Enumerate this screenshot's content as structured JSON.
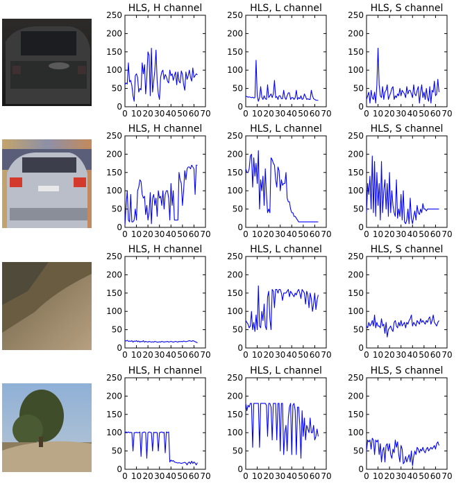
{
  "figure": {
    "rows": [
      {
        "thumbnail": "dark-car-rear-icon"
      },
      {
        "thumbnail": "silver-car-rear-icon"
      },
      {
        "thumbnail": "hillside-slope-icon"
      },
      {
        "thumbnail": "tree-landscape-icon"
      }
    ]
  },
  "chart_data": [
    {
      "type": "line",
      "title": "HLS, H channel",
      "xlim": [
        0,
        70
      ],
      "ylim": [
        0,
        250
      ],
      "xticks": [
        0,
        10,
        20,
        30,
        40,
        50,
        60,
        70
      ],
      "yticks": [
        0,
        50,
        100,
        150,
        200,
        250
      ],
      "color": "#0000ff",
      "values": [
        61,
        65,
        62,
        120,
        68,
        72,
        58,
        30,
        15,
        85,
        90,
        80,
        40,
        50,
        46,
        120,
        90,
        115,
        35,
        80,
        150,
        140,
        30,
        160,
        40,
        70,
        100,
        155,
        70,
        35,
        20,
        80,
        95,
        100,
        75,
        88,
        82,
        70,
        65,
        100,
        85,
        90,
        72,
        85,
        95,
        60,
        95,
        70,
        65,
        98,
        88,
        60,
        45,
        95,
        75,
        85,
        100,
        80,
        70,
        106,
        80,
        85,
        90,
        87
      ]
    },
    {
      "type": "line",
      "title": "HLS, L channel",
      "xlim": [
        0,
        70
      ],
      "ylim": [
        0,
        250
      ],
      "xticks": [
        0,
        10,
        20,
        30,
        40,
        50,
        60,
        70
      ],
      "yticks": [
        0,
        50,
        100,
        150,
        200,
        250
      ],
      "color": "#0000ff",
      "values": [
        28,
        28,
        26,
        27,
        26,
        25,
        26,
        24,
        25,
        127,
        30,
        15,
        25,
        55,
        26,
        20,
        30,
        22,
        20,
        60,
        25,
        30,
        35,
        25,
        35,
        72,
        25,
        28,
        20,
        30,
        30,
        22,
        22,
        45,
        25,
        20,
        30,
        38,
        38,
        20,
        25,
        25,
        20,
        25,
        45,
        20,
        25,
        22,
        30,
        20,
        22,
        35,
        28,
        20,
        22,
        20,
        20,
        45,
        30,
        22,
        20,
        18,
        18,
        17
      ]
    },
    {
      "type": "line",
      "title": "HLS, S channel",
      "xlim": [
        0,
        70
      ],
      "ylim": [
        0,
        250
      ],
      "xticks": [
        0,
        10,
        20,
        30,
        40,
        50,
        60,
        70
      ],
      "yticks": [
        0,
        50,
        100,
        150,
        200,
        250
      ],
      "color": "#0000ff",
      "values": [
        20,
        30,
        40,
        10,
        45,
        25,
        20,
        40,
        10,
        60,
        160,
        60,
        30,
        25,
        55,
        20,
        40,
        45,
        60,
        20,
        30,
        38,
        50,
        55,
        20,
        30,
        25,
        35,
        30,
        50,
        30,
        45,
        40,
        35,
        25,
        55,
        35,
        45,
        45,
        35,
        25,
        60,
        35,
        30,
        45,
        55,
        10,
        40,
        60,
        25,
        40,
        20,
        50,
        25,
        15,
        55,
        10,
        45,
        40,
        70,
        30,
        35,
        75,
        40
      ]
    },
    {
      "type": "line",
      "title": "HLS, H channel",
      "xlim": [
        0,
        70
      ],
      "ylim": [
        0,
        250
      ],
      "xticks": [
        0,
        10,
        20,
        30,
        40,
        50,
        60,
        70
      ],
      "yticks": [
        0,
        50,
        100,
        150,
        200,
        250
      ],
      "color": "#0000ff",
      "values": [
        5,
        60,
        100,
        20,
        15,
        90,
        15,
        15,
        20,
        50,
        20,
        100,
        110,
        130,
        125,
        90,
        80,
        85,
        35,
        60,
        20,
        40,
        95,
        10,
        80,
        90,
        60,
        80,
        30,
        100,
        80,
        85,
        60,
        100,
        50,
        90,
        100,
        100,
        80,
        20,
        120,
        60,
        100,
        20,
        20,
        20,
        20,
        150,
        130,
        120,
        60,
        100,
        155,
        130,
        160,
        165,
        165,
        160,
        170,
        165,
        160,
        90,
        170,
        170
      ]
    },
    {
      "type": "line",
      "title": "HLS, L channel",
      "xlim": [
        0,
        70
      ],
      "ylim": [
        0,
        250
      ],
      "xticks": [
        0,
        10,
        20,
        30,
        40,
        50,
        60,
        70
      ],
      "yticks": [
        0,
        50,
        100,
        150,
        200,
        250
      ],
      "color": "#0000ff",
      "values": [
        160,
        150,
        150,
        160,
        195,
        200,
        110,
        190,
        140,
        175,
        120,
        210,
        50,
        130,
        100,
        140,
        60,
        160,
        90,
        40,
        50,
        40,
        190,
        185,
        175,
        170,
        130,
        110,
        165,
        155,
        100,
        130,
        115,
        120,
        120,
        150,
        80,
        70,
        70,
        50,
        40,
        40,
        30,
        30,
        25,
        20,
        15,
        15,
        15,
        15,
        15,
        15,
        15,
        15,
        15,
        15,
        15,
        15,
        15,
        15,
        15,
        15,
        15,
        15
      ]
    },
    {
      "type": "line",
      "title": "HLS, S channel",
      "xlim": [
        0,
        70
      ],
      "ylim": [
        0,
        250
      ],
      "xticks": [
        0,
        10,
        20,
        30,
        40,
        50,
        60,
        70
      ],
      "yticks": [
        0,
        50,
        100,
        150,
        200,
        250
      ],
      "color": "#0000ff",
      "values": [
        40,
        120,
        90,
        140,
        50,
        195,
        40,
        180,
        30,
        150,
        60,
        120,
        20,
        180,
        40,
        100,
        130,
        50,
        120,
        30,
        150,
        40,
        100,
        60,
        40,
        30,
        130,
        25,
        50,
        30,
        90,
        20,
        100,
        15,
        10,
        20,
        50,
        10,
        80,
        25,
        10,
        30,
        45,
        20,
        60,
        40,
        35,
        50,
        40,
        65,
        50,
        50,
        45,
        50,
        50,
        50,
        50,
        50,
        50,
        50,
        50,
        50,
        50,
        50
      ]
    },
    {
      "type": "line",
      "title": "HLS, H channel",
      "xlim": [
        0,
        70
      ],
      "ylim": [
        0,
        250
      ],
      "xticks": [
        0,
        10,
        20,
        30,
        40,
        50,
        60,
        70
      ],
      "yticks": [
        0,
        50,
        100,
        150,
        200,
        250
      ],
      "color": "#0000ff",
      "values": [
        20,
        19,
        21,
        18,
        19,
        18,
        20,
        16,
        19,
        18,
        20,
        17,
        19,
        16,
        18,
        17,
        20,
        16,
        18,
        17,
        16,
        18,
        17,
        16,
        17,
        16,
        18,
        17,
        16,
        16,
        17,
        16,
        18,
        17,
        16,
        17,
        17,
        18,
        16,
        17,
        18,
        17,
        16,
        17,
        18,
        17,
        16,
        18,
        17,
        18,
        17,
        19,
        18,
        17,
        18,
        19,
        20,
        19,
        18,
        20,
        19,
        17,
        16,
        14
      ]
    },
    {
      "type": "line",
      "title": "HLS, L channel",
      "xlim": [
        0,
        70
      ],
      "ylim": [
        0,
        250
      ],
      "xticks": [
        0,
        10,
        20,
        30,
        40,
        50,
        60,
        70
      ],
      "yticks": [
        0,
        50,
        100,
        150,
        200,
        250
      ],
      "color": "#0000ff",
      "values": [
        75,
        70,
        65,
        55,
        60,
        100,
        50,
        70,
        45,
        90,
        50,
        170,
        60,
        55,
        100,
        75,
        120,
        60,
        50,
        140,
        155,
        80,
        50,
        160,
        155,
        110,
        160,
        160,
        150,
        160,
        160,
        150,
        130,
        150,
        150,
        150,
        155,
        160,
        140,
        155,
        150,
        145,
        140,
        150,
        145,
        155,
        160,
        150,
        135,
        160,
        155,
        150,
        120,
        155,
        145,
        110,
        150,
        135,
        100,
        120,
        150,
        105,
        130,
        145
      ]
    },
    {
      "type": "line",
      "title": "HLS, S channel",
      "xlim": [
        0,
        70
      ],
      "ylim": [
        0,
        250
      ],
      "xticks": [
        0,
        10,
        20,
        30,
        40,
        50,
        60,
        70
      ],
      "yticks": [
        0,
        50,
        100,
        150,
        200,
        250
      ],
      "color": "#0000ff",
      "values": [
        60,
        55,
        70,
        60,
        65,
        75,
        60,
        90,
        55,
        70,
        60,
        60,
        55,
        80,
        60,
        65,
        40,
        70,
        30,
        50,
        55,
        60,
        50,
        45,
        70,
        75,
        60,
        55,
        70,
        60,
        75,
        60,
        65,
        70,
        55,
        70,
        65,
        75,
        80,
        90,
        60,
        70,
        65,
        60,
        75,
        70,
        65,
        80,
        70,
        75,
        70,
        65,
        75,
        70,
        80,
        85,
        65,
        75,
        90,
        70,
        65,
        60,
        70,
        75
      ]
    },
    {
      "type": "line",
      "title": "HLS, H channel",
      "xlim": [
        0,
        70
      ],
      "ylim": [
        0,
        250
      ],
      "xticks": [
        0,
        10,
        20,
        30,
        40,
        50,
        60,
        70
      ],
      "yticks": [
        0,
        50,
        100,
        150,
        200,
        250
      ],
      "color": "#0000ff",
      "values": [
        100,
        102,
        100,
        102,
        100,
        101,
        100,
        50,
        100,
        100,
        101,
        100,
        100,
        102,
        35,
        100,
        101,
        102,
        100,
        30,
        100,
        102,
        101,
        100,
        50,
        101,
        100,
        101,
        100,
        50,
        100,
        101,
        102,
        100,
        101,
        45,
        102,
        100,
        102,
        20,
        25,
        22,
        24,
        20,
        19,
        18,
        17,
        18,
        17,
        16,
        17,
        18,
        19,
        17,
        12,
        18,
        20,
        15,
        22,
        16,
        20,
        17,
        12,
        18
      ]
    },
    {
      "type": "line",
      "title": "HLS, L channel",
      "xlim": [
        0,
        70
      ],
      "ylim": [
        0,
        250
      ],
      "xticks": [
        0,
        10,
        20,
        30,
        40,
        50,
        60,
        70
      ],
      "yticks": [
        0,
        50,
        100,
        150,
        200,
        250
      ],
      "color": "#0000ff",
      "values": [
        180,
        160,
        175,
        170,
        180,
        180,
        60,
        180,
        180,
        180,
        180,
        180,
        60,
        180,
        180,
        180,
        180,
        180,
        175,
        90,
        180,
        180,
        170,
        80,
        180,
        180,
        180,
        80,
        180,
        180,
        50,
        180,
        180,
        40,
        100,
        120,
        50,
        140,
        170,
        180,
        40,
        175,
        180,
        160,
        40,
        170,
        170,
        120,
        30,
        160,
        90,
        140,
        80,
        120,
        110,
        100,
        140,
        100,
        100,
        120,
        80,
        90,
        110,
        90
      ]
    },
    {
      "type": "line",
      "title": "HLS, S channel",
      "xlim": [
        0,
        70
      ],
      "ylim": [
        0,
        250
      ],
      "xticks": [
        0,
        10,
        20,
        30,
        40,
        50,
        60,
        70
      ],
      "yticks": [
        0,
        50,
        100,
        150,
        200,
        250
      ],
      "color": "#0000ff",
      "values": [
        50,
        80,
        75,
        80,
        55,
        85,
        80,
        40,
        80,
        75,
        80,
        40,
        70,
        20,
        50,
        60,
        20,
        65,
        70,
        50,
        70,
        40,
        30,
        55,
        45,
        80,
        60,
        75,
        40,
        20,
        65,
        55,
        15,
        20,
        35,
        20,
        30,
        40,
        20,
        50,
        10,
        35,
        50,
        40,
        60,
        55,
        45,
        55,
        50,
        60,
        50,
        45,
        55,
        60,
        50,
        55,
        60,
        55,
        60,
        65,
        55,
        70,
        75,
        65
      ]
    }
  ]
}
